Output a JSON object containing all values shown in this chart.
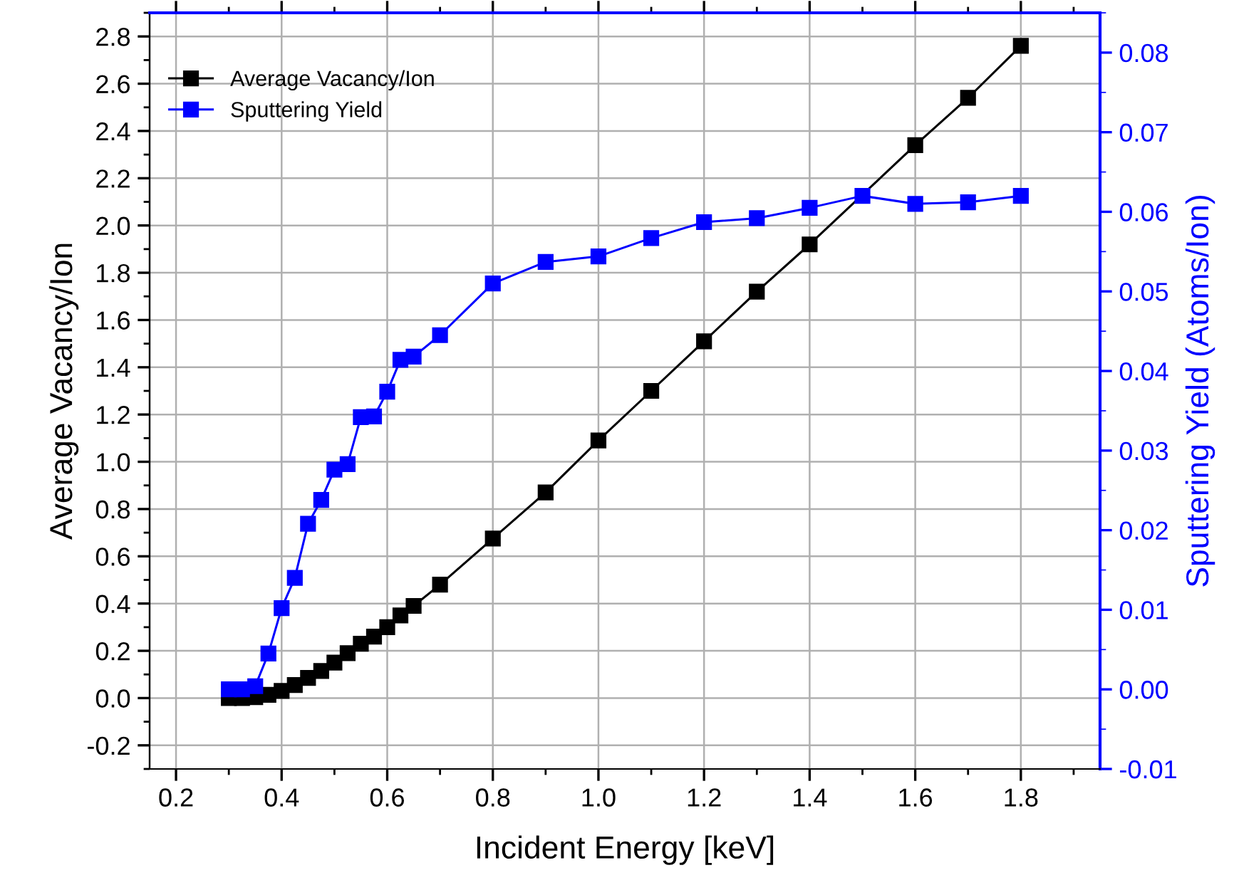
{
  "chart_data": {
    "type": "line",
    "xlabel": "Incident Energy [keV]",
    "ylabel": "Average Vacancy/Ion",
    "y2label": "Sputtering Yield (Atoms/Ion)",
    "xlim": [
      0.15,
      1.95
    ],
    "xticks": [
      {
        "value": 0.2,
        "label": "0.2"
      },
      {
        "value": 0.4,
        "label": "0.4"
      },
      {
        "value": 0.6,
        "label": "0.6"
      },
      {
        "value": 0.8,
        "label": "0.8"
      },
      {
        "value": 1.0,
        "label": "1.0"
      },
      {
        "value": 1.2,
        "label": "1.2"
      },
      {
        "value": 1.4,
        "label": "1.4"
      },
      {
        "value": 1.6,
        "label": "1.6"
      },
      {
        "value": 1.8,
        "label": "1.8"
      }
    ],
    "ylim": [
      -0.3,
      2.9
    ],
    "yticks": [
      {
        "value": -0.2,
        "label": "-0.2"
      },
      {
        "value": 0.0,
        "label": "0.0"
      },
      {
        "value": 0.2,
        "label": "0.2"
      },
      {
        "value": 0.4,
        "label": "0.4"
      },
      {
        "value": 0.6,
        "label": "0.6"
      },
      {
        "value": 0.8,
        "label": "0.8"
      },
      {
        "value": 1.0,
        "label": "1.0"
      },
      {
        "value": 1.2,
        "label": "1.2"
      },
      {
        "value": 1.4,
        "label": "1.4"
      },
      {
        "value": 1.6,
        "label": "1.6"
      },
      {
        "value": 1.8,
        "label": "1.8"
      },
      {
        "value": 2.0,
        "label": "2.0"
      },
      {
        "value": 2.2,
        "label": "2.2"
      },
      {
        "value": 2.4,
        "label": "2.4"
      },
      {
        "value": 2.6,
        "label": "2.6"
      },
      {
        "value": 2.8,
        "label": "2.8"
      }
    ],
    "y2lim": [
      -0.01,
      0.085
    ],
    "y2ticks": [
      {
        "value": -0.01,
        "label": "-0.01"
      },
      {
        "value": 0.0,
        "label": "0.00"
      },
      {
        "value": 0.01,
        "label": "0.01"
      },
      {
        "value": 0.02,
        "label": "0.02"
      },
      {
        "value": 0.03,
        "label": "0.03"
      },
      {
        "value": 0.04,
        "label": "0.04"
      },
      {
        "value": 0.05,
        "label": "0.05"
      },
      {
        "value": 0.06,
        "label": "0.06"
      },
      {
        "value": 0.07,
        "label": "0.07"
      },
      {
        "value": 0.08,
        "label": "0.08"
      }
    ],
    "x": [
      0.3,
      0.325,
      0.35,
      0.375,
      0.4,
      0.425,
      0.45,
      0.475,
      0.5,
      0.525,
      0.55,
      0.575,
      0.6,
      0.625,
      0.65,
      0.7,
      0.8,
      0.9,
      1.0,
      1.1,
      1.2,
      1.3,
      1.4,
      1.5,
      1.6,
      1.7,
      1.8
    ],
    "grid": true,
    "legend": "top left",
    "marker": "square",
    "line_style": "solid",
    "series": [
      {
        "name": "Average Vacancy/Ion",
        "color": "#000000",
        "values": [
          0.0,
          0.0,
          0.004,
          0.014,
          0.03,
          0.055,
          0.085,
          0.115,
          0.15,
          0.19,
          0.23,
          0.26,
          0.3,
          0.35,
          0.39,
          0.48,
          0.675,
          0.87,
          1.09,
          1.3,
          1.51,
          1.72,
          1.92,
          null,
          2.34,
          2.54,
          2.76
        ]
      },
      {
        "name": "Sputtering Yield",
        "color": "#0000ff",
        "axis": "y2",
        "values": [
          0.0,
          0.0,
          0.0004,
          0.0045,
          0.0102,
          0.014,
          0.0208,
          0.0238,
          0.0276,
          0.0283,
          0.0342,
          0.0343,
          0.0374,
          0.0414,
          0.0418,
          0.0445,
          0.051,
          0.0537,
          0.0544,
          0.0567,
          0.0587,
          0.0592,
          0.0605,
          0.062,
          0.061,
          0.0612,
          0.062
        ]
      }
    ]
  }
}
